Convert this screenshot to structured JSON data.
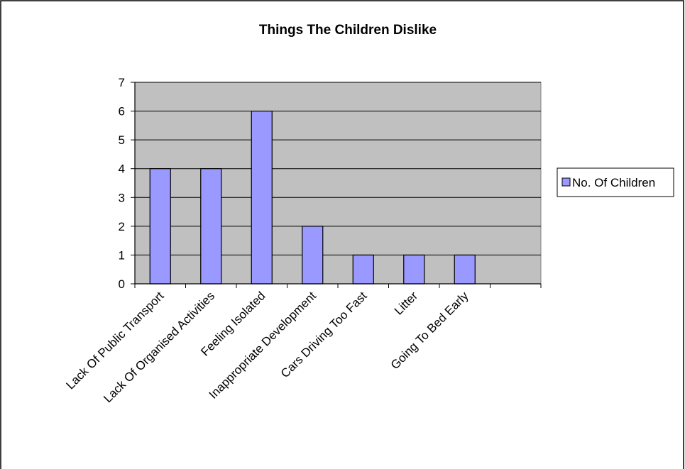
{
  "chart_data": {
    "type": "bar",
    "title": "Things The Children Dislike",
    "categories": [
      "Lack Of Public Transport",
      "Lack Of Organised Activities",
      "Feeling Isolated",
      "Inappropriate Development",
      "Cars Driving Too Fast",
      "Litter",
      "Going To Bed Early",
      ""
    ],
    "series": [
      {
        "name": "No. Of Children",
        "values": [
          4,
          4,
          6,
          2,
          1,
          1,
          1,
          null
        ]
      }
    ],
    "xlabel": "",
    "ylabel": "",
    "ylim": [
      0,
      7
    ],
    "yticks": [
      "0",
      "1",
      "2",
      "3",
      "4",
      "5",
      "6",
      "7"
    ],
    "grid": true,
    "legend": "right",
    "colors": {
      "bar": "#9999ff",
      "bar_border": "#000000",
      "plot_bg": "#c0c0c0",
      "grid": "#000000"
    }
  }
}
